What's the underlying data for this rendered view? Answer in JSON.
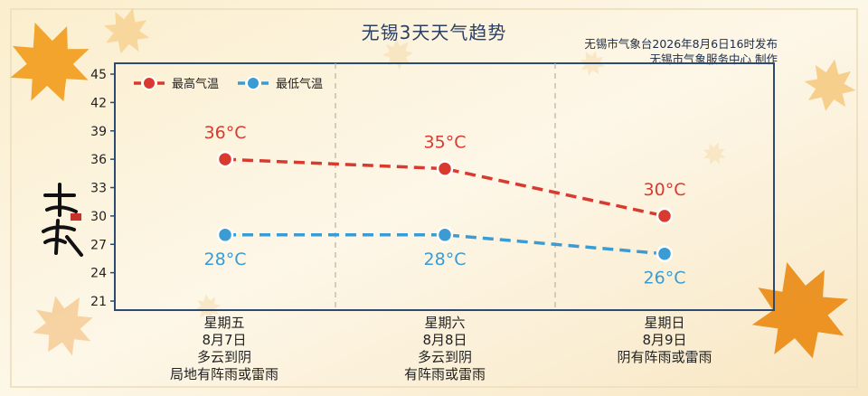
{
  "header": {
    "title": "无锡3天天气趋势",
    "issuer_line1": "无锡市气象台2026年8月6日16时发布",
    "issuer_line2": "无锡市气象服务中心  制作"
  },
  "seal": {
    "text": "立秋"
  },
  "colors": {
    "high": "#d93a30",
    "low": "#3b9bd3",
    "frame": "#2d4a73",
    "grid": "#b9b2a2"
  },
  "days": [
    {
      "weekday": "星期五",
      "date": "8月7日",
      "weather1": "多云到阴",
      "weather2": "局地有阵雨或雷雨"
    },
    {
      "weekday": "星期六",
      "date": "8月8日",
      "weather1": "多云到阴",
      "weather2": "有阵雨或雷雨"
    },
    {
      "weekday": "星期日",
      "date": "8月9日",
      "weather1": "阴有阵雨或雷雨",
      "weather2": ""
    }
  ],
  "chart_data": {
    "type": "line",
    "categories": [
      "星期五",
      "星期六",
      "星期日"
    ],
    "series": [
      {
        "name": "最高气温",
        "values": [
          36,
          35,
          30
        ],
        "labels": [
          "36°C",
          "35°C",
          "30°C"
        ]
      },
      {
        "name": "最低气温",
        "values": [
          28,
          28,
          26
        ],
        "labels": [
          "28°C",
          "28°C",
          "26°C"
        ]
      }
    ],
    "ylim": [
      21,
      45
    ],
    "yticks": [
      21,
      24,
      27,
      30,
      33,
      36,
      39,
      42,
      45
    ],
    "ytick_labels": [
      "21",
      "24",
      "27",
      "30",
      "33",
      "36",
      "39",
      "42",
      "45"
    ],
    "legend": "top-left",
    "line_style": "dashed",
    "grid": "vertical dashed separators"
  }
}
